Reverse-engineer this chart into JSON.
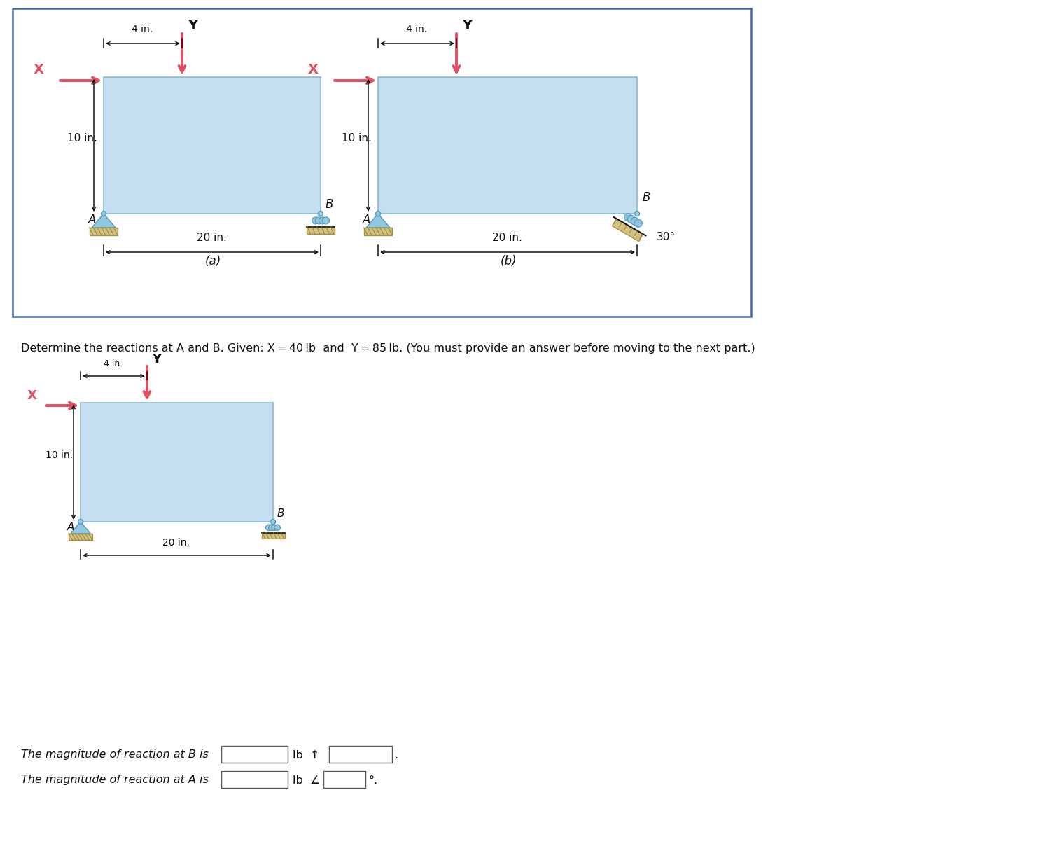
{
  "bg_color": "#ffffff",
  "box_color": "#c5dff0",
  "box_edge_color": "#8ab8d0",
  "support_body_color": "#d4c080",
  "support_edge": "#aa9040",
  "pin_body_color": "#90c8e0",
  "arrow_color": "#e05060",
  "dim_color": "#111111",
  "text_color": "#111111",
  "border_color": "#4466aa",
  "title_text": "Determine the reactions at A and B. Given: X = 40 lb  and  Y = 85 lb. (You must provide an answer before moving to the next part.)",
  "label_a": "A",
  "label_b": "B",
  "label_x": "X",
  "label_y": "Y",
  "dim_20": "20 in.",
  "dim_10": "10 in.",
  "dim_4": "4 in.",
  "sub_a": "(a)",
  "sub_b": "(b)",
  "angle_label": "30°",
  "reaction_b_text": "The magnitude of reaction at B is",
  "reaction_a_text": "The magnitude of reaction at A is"
}
